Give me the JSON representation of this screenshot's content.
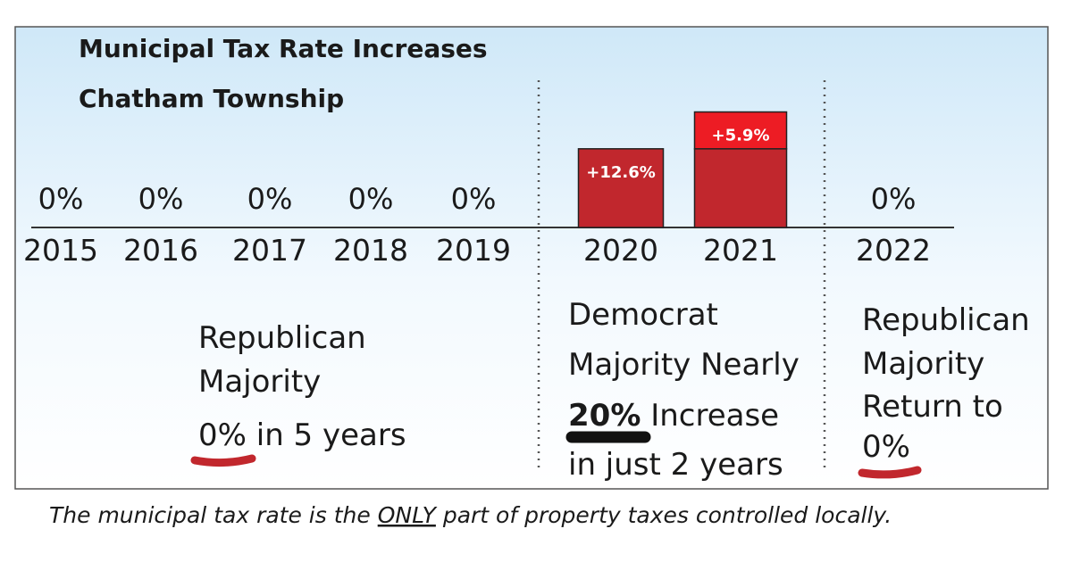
{
  "chart_data": {
    "type": "bar",
    "title": "Municipal Tax Rate Increases",
    "subtitle": "Chatham Township",
    "categories": [
      "2015",
      "2016",
      "2017",
      "2018",
      "2019",
      "2020",
      "2021",
      "2022"
    ],
    "series": [
      {
        "color": "#c1272d",
        "values": [
          0,
          0,
          0,
          0,
          0,
          12.6,
          12.6,
          0
        ],
        "value_labels": [
          "0%",
          "0%",
          "0%",
          "0%",
          "0%",
          "+12.6%",
          null,
          "0%"
        ]
      },
      {
        "color": "#ed1c24",
        "values": [
          null,
          null,
          null,
          null,
          null,
          null,
          5.9,
          null
        ],
        "value_labels": [
          null,
          null,
          null,
          null,
          null,
          null,
          "+5.9%",
          null
        ]
      }
    ],
    "ylim": [
      0,
      22
    ],
    "annotations": [
      {
        "lines": [
          "Republican",
          "Majority",
          "0% in 5 years"
        ]
      },
      {
        "lines": [
          "Democrat",
          "Majority Nearly",
          "20%",
          " Increase",
          "in just 2 years"
        ]
      },
      {
        "lines": [
          "Republican",
          "Majority",
          "Return to",
          "0%"
        ]
      }
    ],
    "footnote": [
      "The municipal tax rate is the ",
      "ONLY",
      " part of property taxes controlled locally."
    ]
  }
}
